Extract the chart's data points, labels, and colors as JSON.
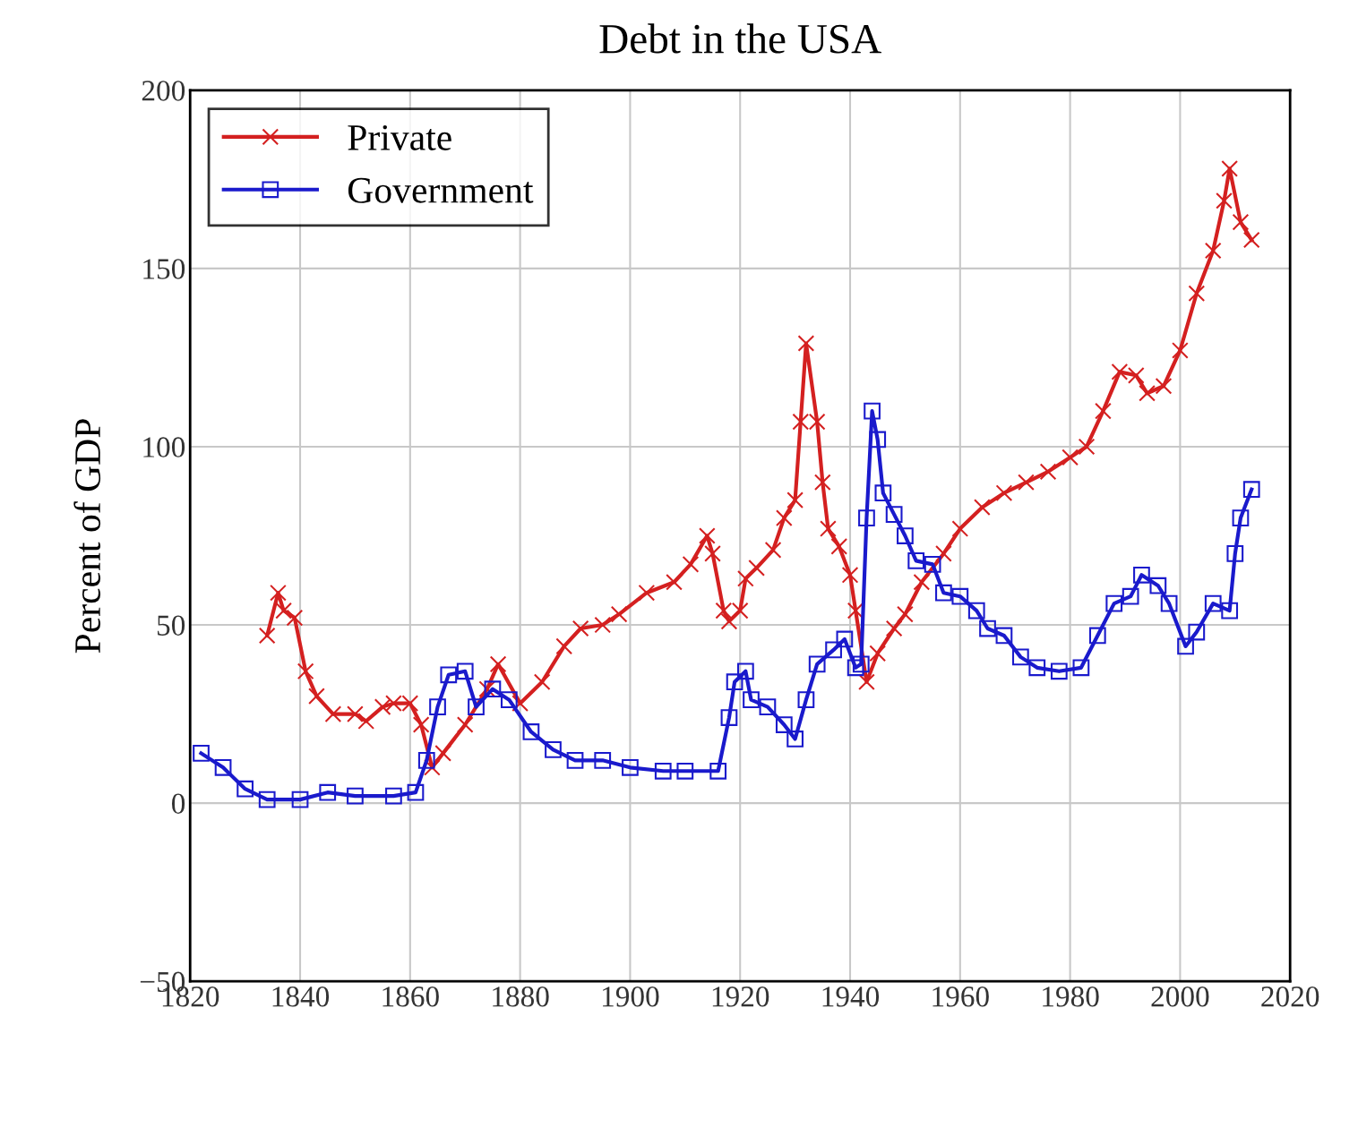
{
  "chart_data": {
    "type": "line",
    "title": "Debt in the USA",
    "ylabel": "Percent of GDP",
    "xlim": [
      1820,
      2020
    ],
    "xticks": [
      1820,
      1840,
      1860,
      1880,
      1900,
      1920,
      1940,
      1960,
      1980,
      2000,
      2020
    ],
    "ylim": [
      -50,
      200
    ],
    "yticks": [
      {
        "value": -50,
        "label": "−50"
      },
      0,
      50,
      100,
      150,
      200
    ],
    "grid": true,
    "legend": "top left",
    "line_style": "solid",
    "series": [
      {
        "name": "Private",
        "color": "#d42020",
        "marker": "cross",
        "x": [
          1834,
          1836,
          1837,
          1839,
          1841,
          1843,
          1846,
          1850,
          1852,
          1855,
          1857,
          1860,
          1862,
          1864,
          1866,
          1870,
          1874,
          1876,
          1880,
          1884,
          1888,
          1891,
          1895,
          1898,
          1903,
          1908,
          1911,
          1914,
          1915,
          1917,
          1918,
          1920,
          1921,
          1923,
          1926,
          1928,
          1930,
          1931,
          1932,
          1934,
          1935,
          1936,
          1938,
          1940,
          1941,
          1943,
          1945,
          1948,
          1950,
          1953,
          1957,
          1960,
          1964,
          1968,
          1972,
          1976,
          1980,
          1983,
          1986,
          1989,
          1992,
          1994,
          1997,
          2000,
          2003,
          2006,
          2008,
          2009,
          2011,
          2013
        ],
        "values": [
          47,
          59,
          54,
          52,
          37,
          30,
          25,
          25,
          23,
          27,
          28,
          28,
          22,
          10,
          14,
          22,
          32,
          39,
          28,
          34,
          44,
          49,
          50,
          53,
          59,
          62,
          67,
          75,
          70,
          54,
          51,
          54,
          63,
          66,
          71,
          80,
          85,
          107,
          129,
          107,
          90,
          77,
          72,
          64,
          54,
          34,
          42,
          49,
          53,
          62,
          70,
          77,
          83,
          87,
          90,
          93,
          97,
          100,
          110,
          121,
          120,
          115,
          117,
          127,
          143,
          155,
          169,
          178,
          163,
          158
        ]
      },
      {
        "name": "Government",
        "color": "#1a1acc",
        "marker": "square",
        "x": [
          1822,
          1826,
          1830,
          1834,
          1840,
          1845,
          1850,
          1857,
          1861,
          1863,
          1865,
          1867,
          1870,
          1872,
          1875,
          1878,
          1882,
          1886,
          1890,
          1895,
          1900,
          1906,
          1910,
          1916,
          1918,
          1919,
          1921,
          1922,
          1925,
          1928,
          1930,
          1932,
          1934,
          1937,
          1939,
          1941,
          1942,
          1943,
          1944,
          1945,
          1946,
          1948,
          1950,
          1952,
          1955,
          1957,
          1960,
          1963,
          1965,
          1968,
          1971,
          1974,
          1978,
          1982,
          1985,
          1988,
          1991,
          1993,
          1996,
          1998,
          2001,
          2003,
          2006,
          2009,
          2010,
          2011,
          2013
        ],
        "values": [
          14,
          10,
          4,
          1,
          1,
          3,
          2,
          2,
          3,
          12,
          27,
          36,
          37,
          27,
          32,
          29,
          20,
          15,
          12,
          12,
          10,
          9,
          9,
          9,
          24,
          34,
          37,
          29,
          27,
          22,
          18,
          29,
          39,
          43,
          46,
          38,
          39,
          80,
          110,
          102,
          87,
          81,
          75,
          68,
          67,
          59,
          58,
          54,
          49,
          47,
          41,
          38,
          37,
          38,
          47,
          56,
          58,
          64,
          61,
          56,
          44,
          48,
          56,
          54,
          70,
          80,
          88
        ]
      }
    ]
  }
}
